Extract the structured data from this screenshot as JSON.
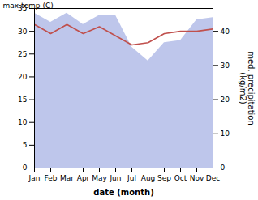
{
  "chart_data": {
    "type": "line",
    "categories": [
      "Jan",
      "Feb",
      "Mar",
      "Apr",
      "May",
      "Jun",
      "Jul",
      "Aug",
      "Sep",
      "Oct",
      "Nov",
      "Dec"
    ],
    "series": [
      {
        "type": "area",
        "color": "#b3bce8",
        "values": [
          34.0,
          32.0,
          34.0,
          31.5,
          33.5,
          33.5,
          26.5,
          23.5,
          27.5,
          28.0,
          32.5,
          33.0
        ]
      },
      {
        "type": "line",
        "color": "#c0504d",
        "values": [
          31.5,
          29.5,
          31.5,
          29.5,
          31.0,
          29.0,
          27.0,
          27.5,
          29.5,
          30.0,
          30.0,
          30.5
        ]
      }
    ],
    "ylim": [
      0,
      35
    ],
    "yticks": [
      0,
      5,
      10,
      15,
      20,
      25,
      30,
      35
    ],
    "y2lim": [
      0,
      46.667
    ],
    "y2ticks": [
      0,
      10,
      20,
      30,
      40
    ],
    "xlabel": "date (month)",
    "ylabel": "max temp (C)",
    "y2label": "med. precipitation\n(kg/m2)",
    "grid": false
  }
}
